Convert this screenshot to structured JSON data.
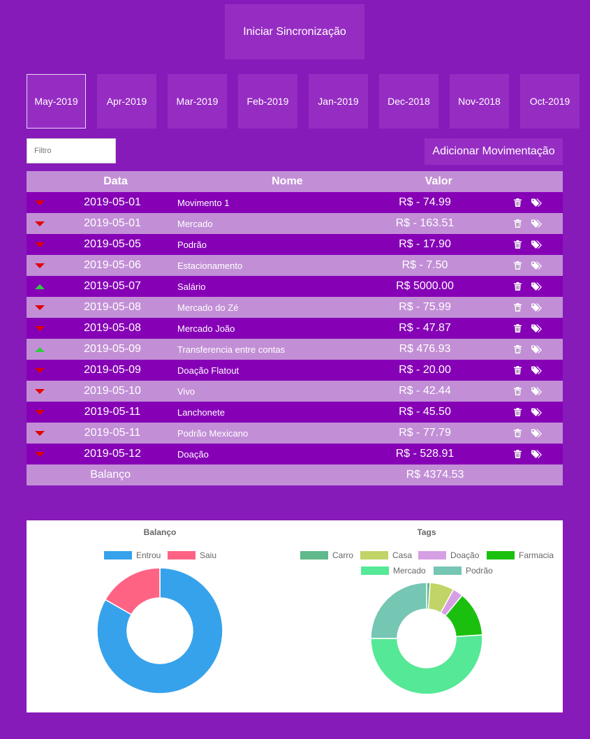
{
  "sync_button": "Iniciar Sincronização",
  "months": [
    "May-2019",
    "Apr-2019",
    "Mar-2019",
    "Feb-2019",
    "Jan-2019",
    "Dec-2018",
    "Nov-2018",
    "Oct-2019"
  ],
  "active_month": "May-2019",
  "filter": {
    "placeholder": "Filtro",
    "value": ""
  },
  "add_button": "Adicionar Movimentação",
  "table": {
    "headers": {
      "date": "Data",
      "name": "Nome",
      "value": "Valor"
    },
    "rows": [
      {
        "direction": "down",
        "date": "2019-05-01",
        "name": "Movimento 1",
        "value": "R$ - 74.99"
      },
      {
        "direction": "down",
        "date": "2019-05-01",
        "name": "Mercado",
        "value": "R$ - 163.51"
      },
      {
        "direction": "down",
        "date": "2019-05-05",
        "name": "Podrão",
        "value": "R$ - 17.90"
      },
      {
        "direction": "down",
        "date": "2019-05-06",
        "name": "Estacionamento",
        "value": "R$ - 7.50"
      },
      {
        "direction": "up",
        "date": "2019-05-07",
        "name": "Salário",
        "value": "R$ 5000.00"
      },
      {
        "direction": "down",
        "date": "2019-05-08",
        "name": "Mercado do Zé",
        "value": "R$ - 75.99"
      },
      {
        "direction": "down",
        "date": "2019-05-08",
        "name": "Mercado João",
        "value": "R$ - 47.87"
      },
      {
        "direction": "up",
        "date": "2019-05-09",
        "name": "Transferencia entre contas",
        "value": "R$ 476.93"
      },
      {
        "direction": "down",
        "date": "2019-05-09",
        "name": "Doação Flatout",
        "value": "R$ - 20.00"
      },
      {
        "direction": "down",
        "date": "2019-05-10",
        "name": "Vivo",
        "value": "R$ - 42.44"
      },
      {
        "direction": "down",
        "date": "2019-05-11",
        "name": "Lanchonete",
        "value": "R$ - 45.50"
      },
      {
        "direction": "down",
        "date": "2019-05-11",
        "name": "Podrão Mexicano",
        "value": "R$ - 77.79"
      },
      {
        "direction": "down",
        "date": "2019-05-12",
        "name": "Doação",
        "value": "R$ - 528.91"
      }
    ],
    "balance_label": "Balanço",
    "balance_value": "R$ 4374.53"
  },
  "icons": {
    "delete": "trash-icon",
    "tag": "tags-icon",
    "income": "arrow-up-icon",
    "expense": "arrow-down-icon"
  },
  "chart_data": [
    {
      "type": "pie",
      "title": "Balanço",
      "labels": [
        "Entrou",
        "Saiu"
      ],
      "values": [
        5476.93,
        1102.4
      ],
      "colors": [
        "#36a2eb",
        "#ff6384"
      ],
      "legend": "top"
    },
    {
      "type": "pie",
      "title": "Tags",
      "labels": [
        "Carro",
        "Casa",
        "Doação",
        "Farmacia",
        "Mercado",
        "Podrão"
      ],
      "values": [
        1,
        7,
        3,
        13,
        51,
        25
      ],
      "colors": [
        "#5fb98a",
        "#c1d467",
        "#d69fe3",
        "#1bc00e",
        "#55e896",
        "#76c6b4"
      ],
      "legend": "top"
    }
  ]
}
